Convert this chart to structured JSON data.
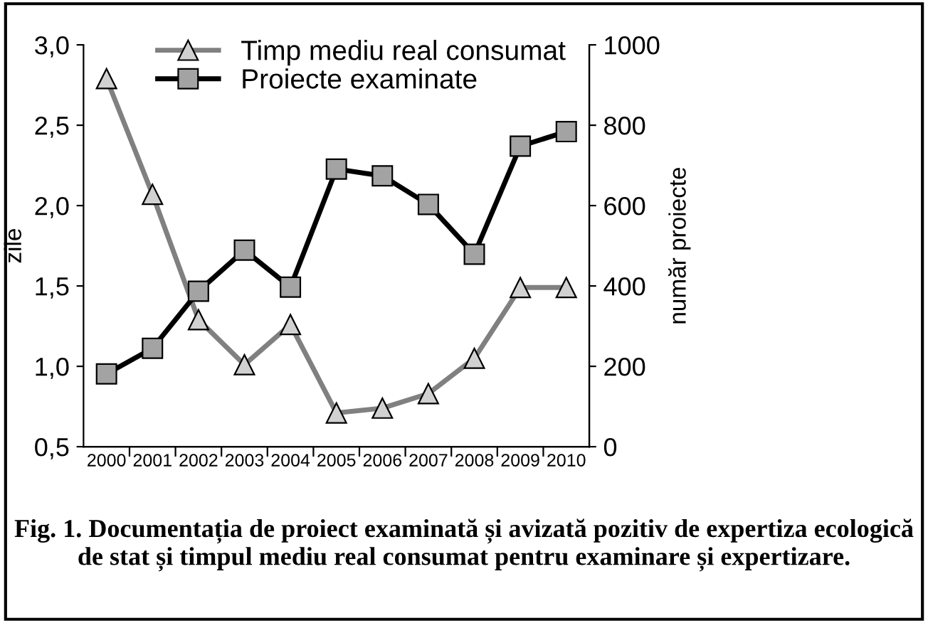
{
  "chart_data": {
    "type": "line",
    "title": "Fig. 1. Documentația de proiect examinată și avizată pozitiv de expertiza ecologică de stat și timpul mediu real consumat pentru examinare și expertizare.",
    "ylabel": "zile",
    "y2label": "număr proiecte",
    "categories": [
      "2000",
      "2001",
      "2002",
      "2003",
      "2004",
      "2005",
      "2006",
      "2007",
      "2008",
      "2009",
      "2010"
    ],
    "series": [
      {
        "name": "Timp mediu real consumat",
        "color": "#808080",
        "marker": "triangle",
        "values": [
          2.79,
          2.07,
          1.29,
          1.01,
          1.26,
          0.71,
          0.74,
          0.83,
          1.05,
          1.49,
          1.49
        ]
      },
      {
        "name": "Proiecte examinate",
        "color": "#000000",
        "marker": "square",
        "axis": "y2",
        "values": [
          181,
          245,
          387,
          489,
          397,
          691,
          674,
          603,
          479,
          748,
          784
        ]
      }
    ],
    "ylim": [
      0.5,
      3.0
    ],
    "yticks": [
      {
        "value": 0.5,
        "label": "0,5"
      },
      {
        "value": 1.0,
        "label": "1,0"
      },
      {
        "value": 1.5,
        "label": "1,5"
      },
      {
        "value": 2.0,
        "label": "2,0"
      },
      {
        "value": 2.5,
        "label": "2,5"
      },
      {
        "value": 3.0,
        "label": "3,0"
      }
    ],
    "y2lim": [
      0,
      1000
    ],
    "y2ticks": [
      0,
      200,
      400,
      600,
      800,
      1000
    ],
    "legend": "top",
    "grid": false,
    "line_style": "solid"
  }
}
